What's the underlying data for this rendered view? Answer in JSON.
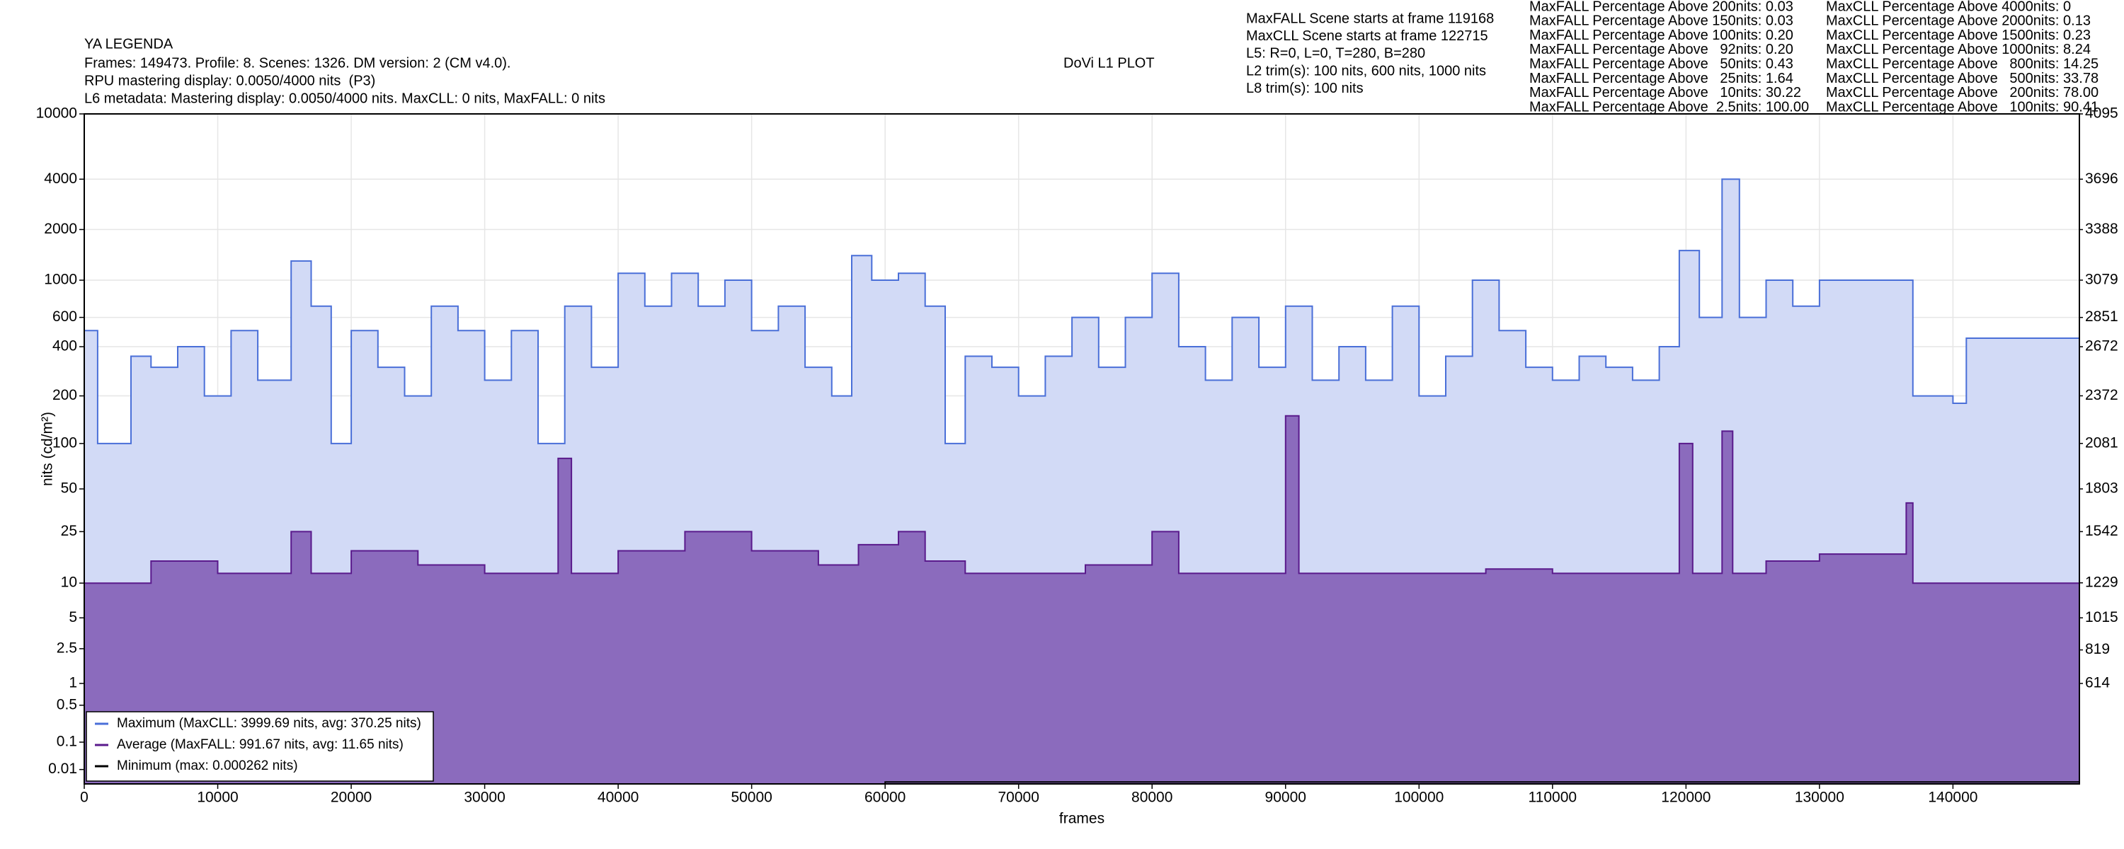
{
  "chart_data": {
    "type": "line",
    "title": "DoVi L1 PLOT",
    "header_lines": [
      "YA LEGENDA",
      "Frames: 149473. Profile: 8. Scenes: 1326. DM version: 2 (CM v4.0).",
      "RPU mastering display: 0.0050/4000 nits  (P3)",
      "L6 metadata: Mastering display: 0.0050/4000 nits. MaxCLL: 0 nits, MaxFALL: 0 nits"
    ],
    "info_lines": [
      "MaxFALL Scene starts at frame 119168",
      "MaxCLL Scene starts at frame 122715",
      "L5: R=0, L=0, T=280, B=280",
      "L2 trim(s): 100 nits, 600 nits, 1000 nits",
      "L8 trim(s): 100 nits"
    ],
    "maxfall_percentages": [
      "MaxFALL Percentage Above 200nits: 0.03",
      "MaxFALL Percentage Above 150nits: 0.03",
      "MaxFALL Percentage Above 100nits: 0.20",
      "MaxFALL Percentage Above   92nits: 0.20",
      "MaxFALL Percentage Above   50nits: 0.43",
      "MaxFALL Percentage Above   25nits: 1.64",
      "MaxFALL Percentage Above   10nits: 30.22",
      "MaxFALL Percentage Above  2.5nits: 100.00"
    ],
    "maxcll_percentages": [
      "MaxCLL Percentage Above 4000nits: 0",
      "MaxCLL Percentage Above 2000nits: 0.13",
      "MaxCLL Percentage Above 1500nits: 0.23",
      "MaxCLL Percentage Above 1000nits: 8.24",
      "MaxCLL Percentage Above   800nits: 14.25",
      "MaxCLL Percentage Above   500nits: 33.78",
      "MaxCLL Percentage Above   200nits: 78.00",
      "MaxCLL Percentage Above   100nits: 90.41"
    ],
    "xlabel": "frames",
    "ylabel": "nits (cd/m²)",
    "yscale": "pq",
    "grid": true,
    "legend": "lower left",
    "xlim": [
      0,
      149473
    ],
    "xticks": [
      0,
      10000,
      20000,
      30000,
      40000,
      50000,
      60000,
      70000,
      80000,
      90000,
      100000,
      110000,
      120000,
      130000,
      140000
    ],
    "ylim": [
      0,
      10000
    ],
    "yticks": [
      0.01,
      0.1,
      0.5,
      1,
      2.5,
      5,
      10,
      25,
      50,
      100,
      200,
      400,
      600,
      1000,
      2000,
      4000,
      10000
    ],
    "y2lim": [
      0,
      4095
    ],
    "y2ticks": [
      614,
      819,
      1015,
      1229,
      1542,
      1803,
      2081,
      2372,
      2672,
      2851,
      3079,
      3388,
      3696,
      4095
    ],
    "series": [
      {
        "name": "Maximum (MaxCLL: 3999.69 nits, avg: 370.25 nits)",
        "color": "#4a6fd8",
        "fill": "#d2daf6",
        "x": [
          0,
          1000,
          3500,
          5000,
          7000,
          9000,
          11000,
          13000,
          15500,
          17000,
          18500,
          20000,
          22000,
          24000,
          26000,
          28000,
          30000,
          32000,
          34000,
          36000,
          38000,
          40000,
          42000,
          44000,
          46000,
          48000,
          50000,
          52000,
          54000,
          56000,
          57500,
          59000,
          61000,
          63000,
          64500,
          66000,
          68000,
          70000,
          72000,
          74000,
          76000,
          78000,
          80000,
          82000,
          84000,
          86000,
          88000,
          90000,
          92000,
          94000,
          96000,
          98000,
          100000,
          102000,
          104000,
          106000,
          108000,
          110000,
          112000,
          114000,
          116000,
          118000,
          119500,
          121000,
          122700,
          124000,
          126000,
          128000,
          130000,
          132000,
          134000,
          136000,
          137000,
          140000,
          141000,
          149473
        ],
        "values": [
          500,
          100,
          350,
          300,
          400,
          200,
          500,
          250,
          1300,
          700,
          100,
          500,
          300,
          200,
          700,
          500,
          250,
          500,
          100,
          700,
          300,
          1100,
          700,
          1100,
          700,
          1000,
          500,
          700,
          300,
          200,
          1400,
          1000,
          1100,
          700,
          100,
          350,
          300,
          200,
          350,
          600,
          300,
          600,
          1100,
          400,
          250,
          600,
          300,
          700,
          250,
          400,
          250,
          700,
          200,
          350,
          1000,
          500,
          300,
          250,
          350,
          300,
          250,
          400,
          1500,
          600,
          4000,
          600,
          1000,
          700,
          1000,
          1000,
          1000,
          1000,
          200,
          180,
          450,
          450
        ]
      },
      {
        "name": "Average (MaxFALL: 991.67 nits, avg: 11.65 nits)",
        "color": "#5a1a8c",
        "fill": "#8b6bbd",
        "x": [
          0,
          5000,
          10000,
          15500,
          17000,
          20000,
          25000,
          30000,
          35500,
          36500,
          40000,
          45000,
          50000,
          55000,
          58000,
          61000,
          63000,
          66000,
          70000,
          75000,
          80000,
          82000,
          85000,
          90000,
          91000,
          95000,
          100000,
          105000,
          110000,
          115000,
          119500,
          120500,
          122700,
          123500,
          126000,
          130000,
          134000,
          136500,
          137000,
          140000,
          149473
        ],
        "values": [
          10,
          15,
          12,
          25,
          12,
          18,
          14,
          12,
          80,
          12,
          18,
          25,
          18,
          14,
          20,
          25,
          15,
          12,
          12,
          14,
          25,
          12,
          12,
          150,
          12,
          12,
          12,
          13,
          12,
          12,
          100,
          12,
          120,
          12,
          15,
          17,
          17,
          40,
          10,
          10,
          10
        ]
      },
      {
        "name": "Minimum (max: 0.000262 nits)",
        "color": "#000000",
        "x": [
          0,
          60000,
          149473
        ],
        "values": [
          0,
          0.000262,
          0
        ]
      }
    ]
  }
}
